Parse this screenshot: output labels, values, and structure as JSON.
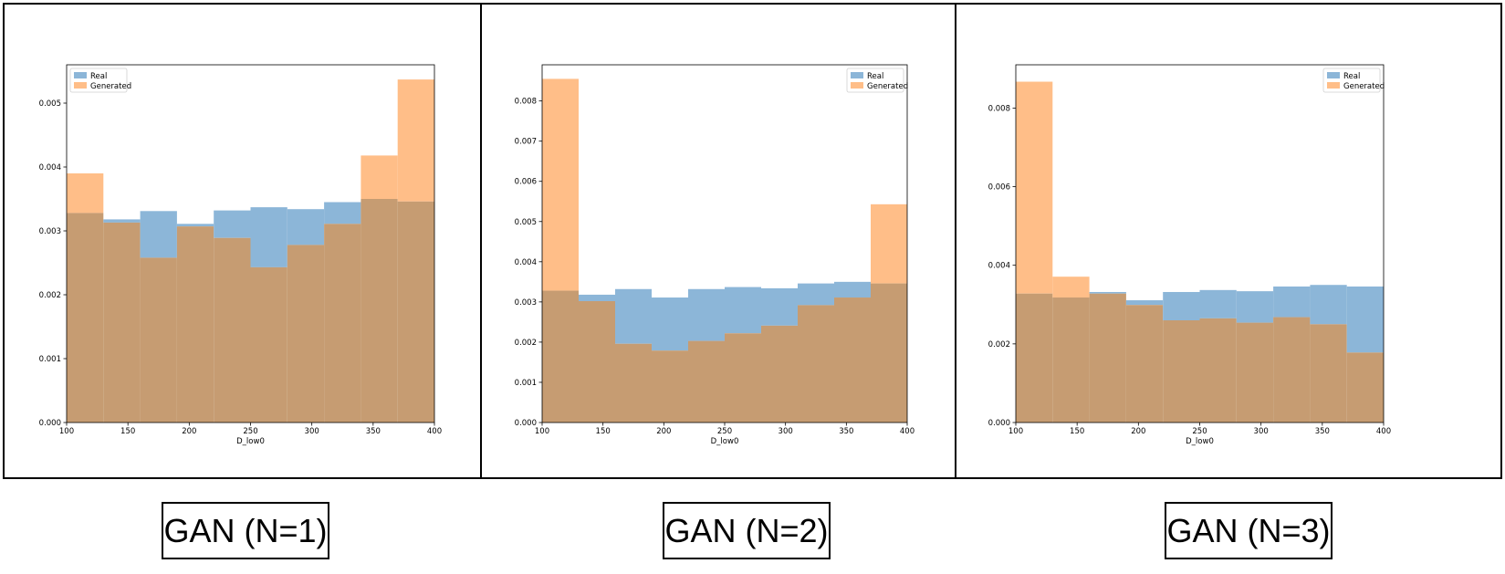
{
  "colors": {
    "real": "#8cb6d8",
    "generated": "#ffbe88",
    "overlap": "#c69c72"
  },
  "chart_data": [
    {
      "type": "bar",
      "caption": "GAN (N=1)",
      "xlabel": "D_low0",
      "xlim": [
        100,
        400
      ],
      "ylim": [
        0,
        0.0056
      ],
      "xticks": [
        "100",
        "150",
        "200",
        "250",
        "300",
        "350",
        "400"
      ],
      "yticks": [
        "0.000",
        "0.001",
        "0.002",
        "0.003",
        "0.004",
        "0.005"
      ],
      "legend": "top-left",
      "bin_edges": [
        100,
        130,
        160,
        190,
        220,
        250,
        280,
        310,
        340,
        370,
        400
      ],
      "series": [
        {
          "name": "Real",
          "values": [
            0.00328,
            0.00318,
            0.00331,
            0.00311,
            0.00332,
            0.00337,
            0.00334,
            0.00345,
            0.0035,
            0.00346
          ]
        },
        {
          "name": "Generated",
          "values": [
            0.0039,
            0.00313,
            0.00258,
            0.00307,
            0.00289,
            0.00243,
            0.00278,
            0.00311,
            0.00418,
            0.00537
          ]
        }
      ]
    },
    {
      "type": "bar",
      "caption": "GAN (N=2)",
      "xlabel": "D_low0",
      "xlim": [
        100,
        400
      ],
      "ylim": [
        0,
        0.0089
      ],
      "xticks": [
        "100",
        "150",
        "200",
        "250",
        "300",
        "350",
        "400"
      ],
      "yticks": [
        "0.000",
        "0.001",
        "0.002",
        "0.003",
        "0.004",
        "0.005",
        "0.006",
        "0.007",
        "0.008"
      ],
      "legend": "top-right",
      "bin_edges": [
        100,
        130,
        160,
        190,
        220,
        250,
        280,
        310,
        340,
        370,
        400
      ],
      "series": [
        {
          "name": "Real",
          "values": [
            0.00328,
            0.00318,
            0.00332,
            0.00311,
            0.00332,
            0.00337,
            0.00334,
            0.00346,
            0.0035,
            0.00346
          ]
        },
        {
          "name": "Generated",
          "values": [
            0.00855,
            0.00302,
            0.00196,
            0.00179,
            0.00203,
            0.00222,
            0.00241,
            0.00292,
            0.00311,
            0.00543
          ]
        }
      ]
    },
    {
      "type": "bar",
      "caption": "GAN (N=3)",
      "xlabel": "D_low0",
      "xlim": [
        100,
        400
      ],
      "ylim": [
        0,
        0.0091
      ],
      "xticks": [
        "100",
        "150",
        "200",
        "250",
        "300",
        "350",
        "400"
      ],
      "yticks": [
        "0.000",
        "0.002",
        "0.004",
        "0.006",
        "0.008"
      ],
      "legend": "top-right",
      "bin_edges": [
        100,
        130,
        160,
        190,
        220,
        250,
        280,
        310,
        340,
        370,
        400
      ],
      "series": [
        {
          "name": "Real",
          "values": [
            0.00328,
            0.00318,
            0.00332,
            0.00311,
            0.00332,
            0.00337,
            0.00334,
            0.00346,
            0.0035,
            0.00346
          ]
        },
        {
          "name": "Generated",
          "values": [
            0.00867,
            0.00371,
            0.00328,
            0.00299,
            0.0026,
            0.00265,
            0.00254,
            0.00268,
            0.0025,
            0.00178
          ]
        }
      ]
    }
  ]
}
